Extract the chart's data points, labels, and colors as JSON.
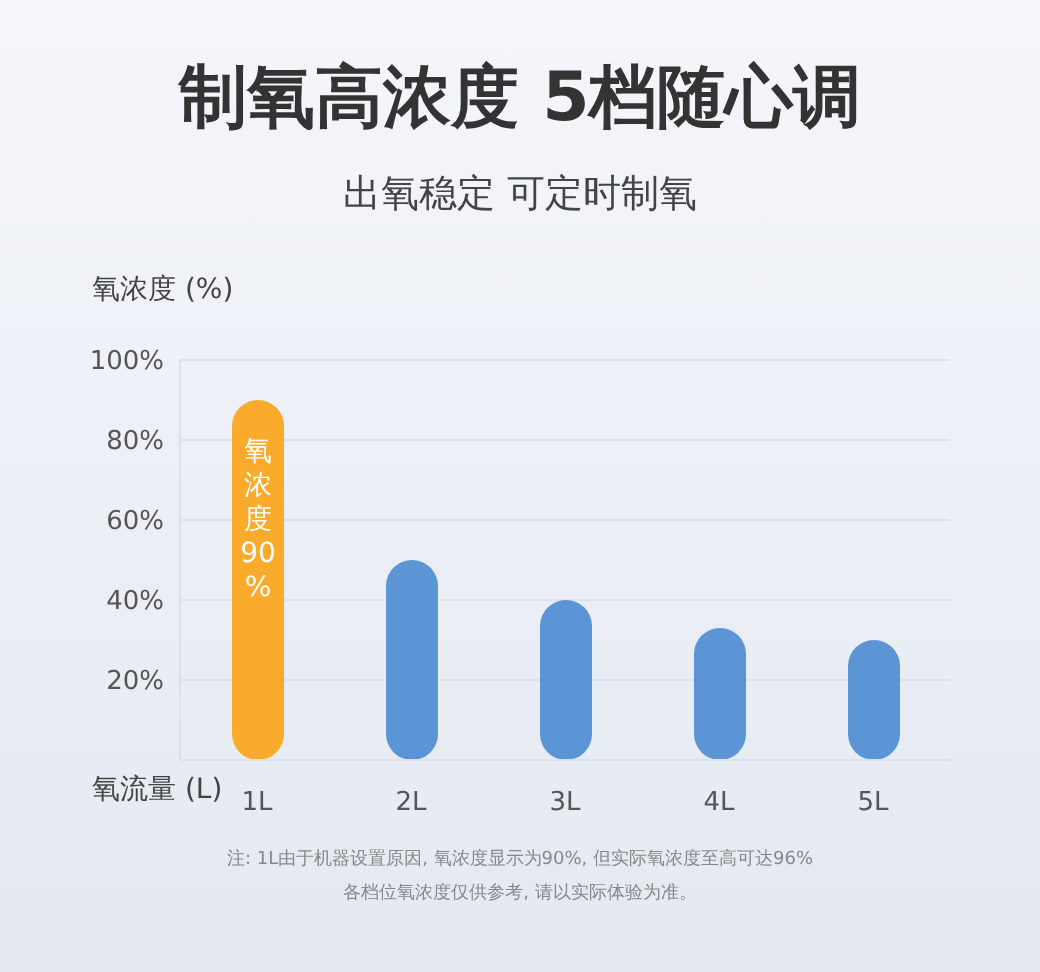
{
  "chart_data": {
    "type": "bar",
    "title": "制氧高浓度 5档随心调",
    "subtitle": "出氧稳定 可定时制氧",
    "ylabel": "氧浓度 (%)",
    "xlabel": "氧流量 (L)",
    "categories": [
      "1L",
      "2L",
      "3L",
      "4L",
      "5L"
    ],
    "values": [
      90,
      50,
      40,
      33,
      30
    ],
    "colors": [
      "#fbab2c",
      "#5b95d6",
      "#5b95d6",
      "#5b95d6",
      "#5b95d6"
    ],
    "value_labels": [
      "氧浓度90%",
      null,
      null,
      null,
      null
    ],
    "ylim": [
      0,
      100
    ],
    "yticks": [
      {
        "value": 20,
        "label": "20%"
      },
      {
        "value": 40,
        "label": "40%"
      },
      {
        "value": 60,
        "label": "60%"
      },
      {
        "value": 80,
        "label": "80%"
      },
      {
        "value": 100,
        "label": "100%"
      }
    ],
    "grid": "y",
    "annotations": [
      "注: 1L由于机器设置原因, 氧浓度显示为90%, 但实际氧浓度至高可达96%",
      "各档位氧浓度仅供参考, 请以实际体验为准。"
    ]
  }
}
